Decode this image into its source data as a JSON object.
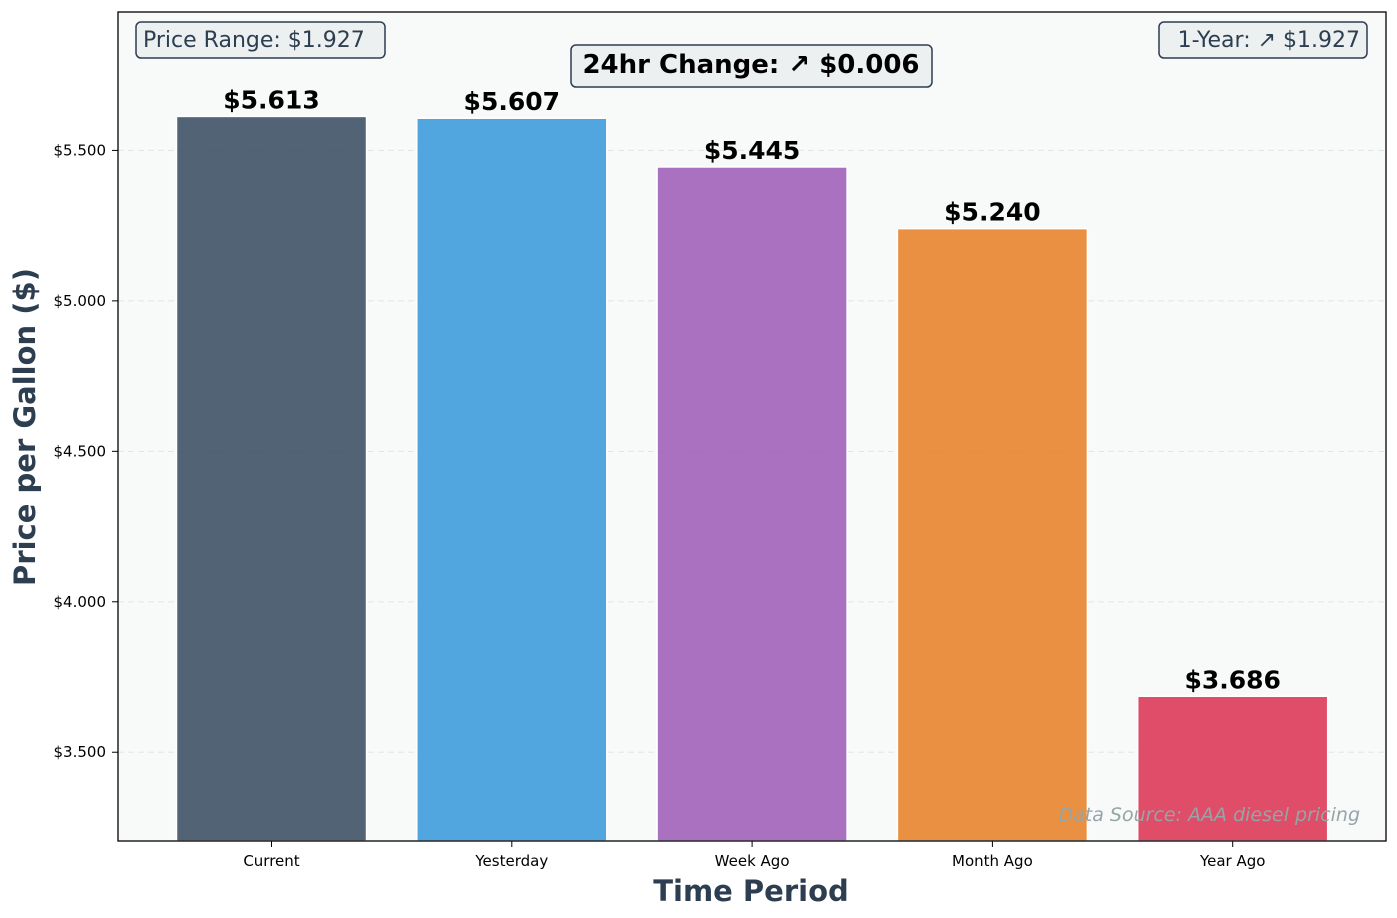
{
  "chart_data": {
    "type": "bar",
    "categories": [
      "Current",
      "Yesterday",
      "Week Ago",
      "Month Ago",
      "Year Ago"
    ],
    "values": [
      5.613,
      5.607,
      5.445,
      5.24,
      3.686
    ],
    "value_labels": [
      "$5.613",
      "$5.607",
      "$5.445",
      "$5.240",
      "$3.686"
    ],
    "colors": [
      "#34495e",
      "#3498db",
      "#9b59b6",
      "#e67e22",
      "#dc2f4f"
    ],
    "xlabel": "Time Period",
    "ylabel": "Price per Gallon ($)",
    "ylim": [
      3.205,
      5.96
    ],
    "yticks": [
      3.5,
      4.0,
      4.5,
      5.0,
      5.5
    ],
    "ytick_labels": [
      "$3.500",
      "$4.000",
      "$4.500",
      "$5.000",
      "$5.500"
    ],
    "grid": "horizontal dashed",
    "annotations": {
      "price_range": "Price Range: $1.927",
      "change_24hr": "24hr Change: ↗ $0.006",
      "one_year": "1-Year: ↗ $1.927",
      "source": "Data Source: AAA diesel pricing"
    }
  }
}
